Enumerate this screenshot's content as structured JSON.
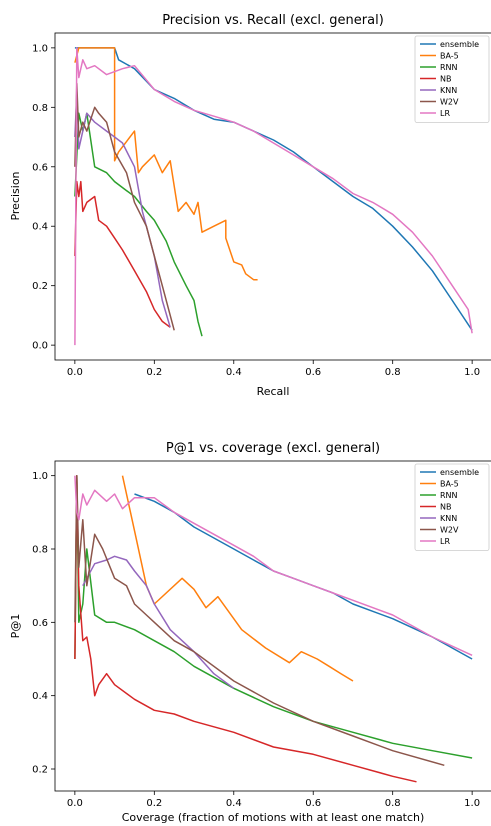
{
  "chart_data": [
    {
      "type": "line",
      "title": "Precision vs. Recall (excl. general)",
      "xlabel": "Recall",
      "ylabel": "Precision",
      "xlim": [
        -0.05,
        1.05
      ],
      "ylim": [
        -0.05,
        1.05
      ],
      "xticks": [
        0.0,
        0.2,
        0.4,
        0.6,
        0.8,
        1.0
      ],
      "yticks": [
        0.0,
        0.2,
        0.4,
        0.6,
        0.8,
        1.0
      ],
      "xtick_labels": [
        "0.0",
        "0.2",
        "0.4",
        "0.6",
        "0.8",
        "1.0"
      ],
      "ytick_labels": [
        "0.0",
        "0.2",
        "0.4",
        "0.6",
        "0.8",
        "1.0"
      ],
      "grid": false,
      "legend": "top-right",
      "series": [
        {
          "name": "ensemble",
          "color": "#1f77b4",
          "x": [
            0.0,
            0.01,
            0.05,
            0.1,
            0.11,
            0.15,
            0.2,
            0.25,
            0.3,
            0.35,
            0.4,
            0.45,
            0.5,
            0.55,
            0.6,
            0.65,
            0.7,
            0.75,
            0.8,
            0.85,
            0.9,
            0.95,
            1.0
          ],
          "y": [
            1.0,
            1.0,
            1.0,
            1.0,
            0.96,
            0.93,
            0.86,
            0.83,
            0.79,
            0.76,
            0.75,
            0.72,
            0.69,
            0.65,
            0.6,
            0.55,
            0.5,
            0.46,
            0.4,
            0.33,
            0.25,
            0.15,
            0.05
          ]
        },
        {
          "name": "BA-5",
          "color": "#ff7f0e",
          "x": [
            0.0,
            0.01,
            0.1,
            0.1,
            0.11,
            0.15,
            0.16,
            0.17,
            0.2,
            0.22,
            0.24,
            0.26,
            0.28,
            0.3,
            0.31,
            0.32,
            0.35,
            0.38,
            0.38,
            0.4,
            0.42,
            0.43,
            0.45,
            0.46
          ],
          "y": [
            0.95,
            1.0,
            1.0,
            0.62,
            0.65,
            0.72,
            0.58,
            0.6,
            0.64,
            0.58,
            0.62,
            0.45,
            0.48,
            0.44,
            0.48,
            0.38,
            0.4,
            0.42,
            0.36,
            0.28,
            0.27,
            0.24,
            0.22,
            0.22
          ]
        },
        {
          "name": "RNN",
          "color": "#2ca02c",
          "x": [
            0.0,
            0.01,
            0.02,
            0.03,
            0.05,
            0.08,
            0.1,
            0.13,
            0.15,
            0.18,
            0.2,
            0.23,
            0.25,
            0.28,
            0.3,
            0.31,
            0.32
          ],
          "y": [
            0.5,
            0.78,
            0.72,
            0.78,
            0.6,
            0.58,
            0.55,
            0.52,
            0.5,
            0.45,
            0.42,
            0.35,
            0.28,
            0.2,
            0.15,
            0.08,
            0.03
          ]
        },
        {
          "name": "NB",
          "color": "#d62728",
          "x": [
            0.0,
            0.005,
            0.01,
            0.015,
            0.02,
            0.03,
            0.05,
            0.06,
            0.08,
            0.1,
            0.12,
            0.15,
            0.18,
            0.2,
            0.22,
            0.24
          ],
          "y": [
            0.3,
            0.55,
            0.5,
            0.55,
            0.45,
            0.48,
            0.5,
            0.42,
            0.4,
            0.36,
            0.32,
            0.25,
            0.18,
            0.12,
            0.08,
            0.06
          ]
        },
        {
          "name": "KNN",
          "color": "#9467bd",
          "x": [
            0.0,
            0.005,
            0.01,
            0.02,
            0.03,
            0.05,
            0.08,
            0.1,
            0.12,
            0.15,
            0.17,
            0.2,
            0.22,
            0.24
          ],
          "y": [
            0.7,
            0.85,
            0.66,
            0.72,
            0.78,
            0.75,
            0.72,
            0.7,
            0.68,
            0.6,
            0.45,
            0.3,
            0.15,
            0.06
          ]
        },
        {
          "name": "W2V",
          "color": "#8c564b",
          "x": [
            0.0,
            0.005,
            0.01,
            0.02,
            0.03,
            0.05,
            0.06,
            0.08,
            0.1,
            0.13,
            0.15,
            0.18,
            0.2,
            0.22,
            0.25
          ],
          "y": [
            0.6,
            0.88,
            0.7,
            0.75,
            0.72,
            0.8,
            0.78,
            0.75,
            0.65,
            0.58,
            0.48,
            0.4,
            0.3,
            0.2,
            0.05
          ]
        },
        {
          "name": "LR",
          "color": "#e377c2",
          "x": [
            0.0,
            0.005,
            0.01,
            0.02,
            0.03,
            0.05,
            0.08,
            0.12,
            0.15,
            0.2,
            0.25,
            0.3,
            0.35,
            0.4,
            0.45,
            0.5,
            0.55,
            0.6,
            0.65,
            0.7,
            0.75,
            0.8,
            0.85,
            0.9,
            0.95,
            0.99,
            1.0
          ],
          "y": [
            0.0,
            1.0,
            0.9,
            0.96,
            0.93,
            0.94,
            0.91,
            0.93,
            0.94,
            0.86,
            0.82,
            0.79,
            0.77,
            0.75,
            0.72,
            0.68,
            0.64,
            0.6,
            0.56,
            0.51,
            0.48,
            0.44,
            0.38,
            0.3,
            0.2,
            0.12,
            0.04
          ]
        }
      ]
    },
    {
      "type": "line",
      "title": "P@1 vs. coverage (excl. general)",
      "xlabel": "Coverage (fraction of motions with at least one match)",
      "ylabel": "P@1",
      "xlim": [
        -0.05,
        1.05
      ],
      "ylim": [
        0.14,
        1.04
      ],
      "xticks": [
        0.0,
        0.2,
        0.4,
        0.6,
        0.8,
        1.0
      ],
      "yticks": [
        0.2,
        0.4,
        0.6,
        0.8,
        1.0
      ],
      "xtick_labels": [
        "0.0",
        "0.2",
        "0.4",
        "0.6",
        "0.8",
        "1.0"
      ],
      "ytick_labels": [
        "0.2",
        "0.4",
        "0.6",
        "0.8",
        "1.0"
      ],
      "grid": false,
      "legend": "top-right",
      "series": [
        {
          "name": "ensemble",
          "color": "#1f77b4",
          "x": [
            0.15,
            0.2,
            0.25,
            0.3,
            0.35,
            0.4,
            0.45,
            0.5,
            0.55,
            0.6,
            0.65,
            0.7,
            0.8,
            0.9,
            1.0
          ],
          "y": [
            0.95,
            0.93,
            0.9,
            0.86,
            0.83,
            0.8,
            0.77,
            0.74,
            0.72,
            0.7,
            0.68,
            0.65,
            0.61,
            0.56,
            0.5
          ]
        },
        {
          "name": "BA-5",
          "color": "#ff7f0e",
          "x": [
            0.12,
            0.15,
            0.18,
            0.2,
            0.27,
            0.3,
            0.33,
            0.36,
            0.42,
            0.48,
            0.54,
            0.57,
            0.61,
            0.64,
            0.67,
            0.7
          ],
          "y": [
            1.0,
            0.85,
            0.7,
            0.65,
            0.72,
            0.69,
            0.64,
            0.67,
            0.58,
            0.53,
            0.49,
            0.52,
            0.5,
            0.48,
            0.46,
            0.44
          ]
        },
        {
          "name": "RNN",
          "color": "#2ca02c",
          "x": [
            0.0,
            0.005,
            0.01,
            0.02,
            0.03,
            0.05,
            0.08,
            0.1,
            0.15,
            0.2,
            0.25,
            0.3,
            0.4,
            0.5,
            0.6,
            0.7,
            0.8,
            0.9,
            1.0
          ],
          "y": [
            0.5,
            1.0,
            0.6,
            0.65,
            0.8,
            0.62,
            0.6,
            0.6,
            0.58,
            0.55,
            0.52,
            0.48,
            0.42,
            0.37,
            0.33,
            0.3,
            0.27,
            0.25,
            0.23
          ]
        },
        {
          "name": "NB",
          "color": "#d62728",
          "x": [
            0.0,
            0.005,
            0.01,
            0.02,
            0.03,
            0.04,
            0.05,
            0.06,
            0.08,
            0.1,
            0.15,
            0.2,
            0.25,
            0.3,
            0.4,
            0.5,
            0.6,
            0.7,
            0.8,
            0.86
          ],
          "y": [
            0.5,
            1.0,
            0.7,
            0.55,
            0.56,
            0.5,
            0.4,
            0.43,
            0.46,
            0.43,
            0.39,
            0.36,
            0.35,
            0.33,
            0.3,
            0.26,
            0.24,
            0.21,
            0.18,
            0.165
          ]
        },
        {
          "name": "KNN",
          "color": "#9467bd",
          "x": [
            0.02,
            0.05,
            0.08,
            0.1,
            0.13,
            0.15,
            0.18,
            0.2,
            0.24,
            0.3,
            0.35,
            0.4
          ],
          "y": [
            0.7,
            0.76,
            0.77,
            0.78,
            0.77,
            0.74,
            0.7,
            0.65,
            0.58,
            0.52,
            0.46,
            0.42
          ]
        },
        {
          "name": "W2V",
          "color": "#8c564b",
          "x": [
            0.0,
            0.005,
            0.01,
            0.02,
            0.03,
            0.05,
            0.07,
            0.1,
            0.13,
            0.15,
            0.18,
            0.2,
            0.25,
            0.3,
            0.4,
            0.5,
            0.6,
            0.7,
            0.8,
            0.93
          ],
          "y": [
            0.6,
            1.0,
            0.75,
            0.88,
            0.7,
            0.84,
            0.8,
            0.72,
            0.7,
            0.65,
            0.62,
            0.6,
            0.55,
            0.52,
            0.44,
            0.38,
            0.33,
            0.29,
            0.25,
            0.21
          ]
        },
        {
          "name": "LR",
          "color": "#e377c2",
          "x": [
            0.0,
            0.005,
            0.01,
            0.02,
            0.03,
            0.05,
            0.08,
            0.1,
            0.12,
            0.15,
            0.2,
            0.25,
            0.3,
            0.35,
            0.4,
            0.45,
            0.5,
            0.55,
            0.6,
            0.65,
            0.7,
            0.8,
            0.9,
            1.0
          ],
          "y": [
            1.0,
            0.9,
            0.88,
            0.95,
            0.92,
            0.96,
            0.93,
            0.95,
            0.91,
            0.94,
            0.94,
            0.9,
            0.87,
            0.84,
            0.81,
            0.78,
            0.74,
            0.72,
            0.7,
            0.68,
            0.66,
            0.62,
            0.56,
            0.51
          ]
        }
      ]
    }
  ]
}
